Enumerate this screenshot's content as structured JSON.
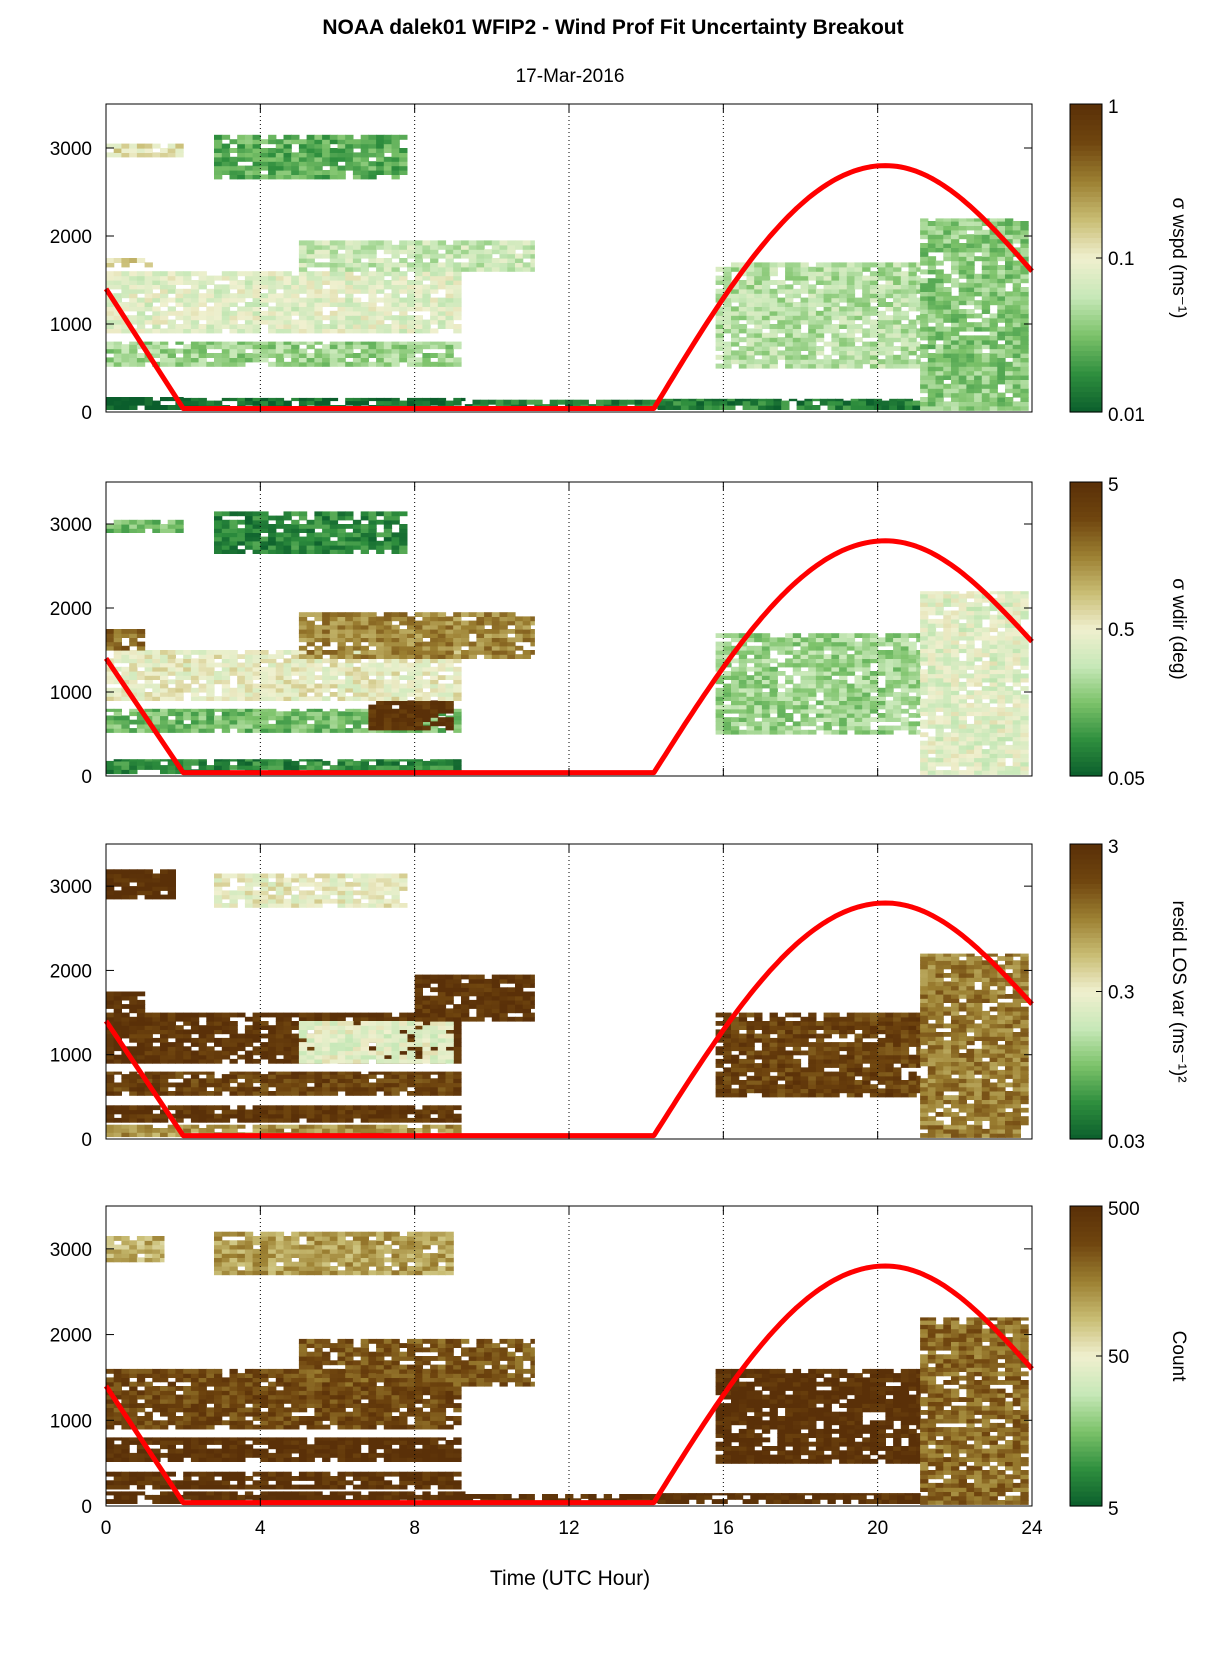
{
  "figure": {
    "title": "NOAA dalek01 WFIP2 - Wind Prof Fit Uncertainty Breakout",
    "subtitle": "17-Mar-2016",
    "xlabel": "Time (UTC Hour)"
  },
  "colors": {
    "colormap": [
      "#0b5e2c",
      "#2f8f3e",
      "#7cc26a",
      "#c7e8b8",
      "#f0f0cf",
      "#c9bd74",
      "#9c8032",
      "#70460f",
      "#5a3008"
    ],
    "sun_line": "#ff0000",
    "axis": "#000000",
    "grid": "#000000"
  },
  "chart_data": [
    {
      "type": "heatmap",
      "title": "",
      "xlabel": "",
      "ylabel": "",
      "xlim": [
        0,
        24
      ],
      "ylim": [
        0,
        3500
      ],
      "x_ticks": [
        0,
        4,
        8,
        12,
        16,
        20,
        24
      ],
      "y_ticks": [
        0,
        1000,
        2000,
        3000
      ],
      "y_tick_labels": [
        "0",
        "1000",
        "2000",
        "3000"
      ],
      "grid_vertical_dotted": true,
      "colorbar": {
        "label": "σ wspd (ms⁻¹)",
        "scale": "log",
        "ticks": [
          0.01,
          0.1,
          1
        ],
        "tick_labels": [
          "0.01",
          "0.1",
          "1"
        ]
      },
      "regions": [
        {
          "x": [
            0.0,
            2.0
          ],
          "y": [
            30,
            170
          ],
          "value": 0.01
        },
        {
          "x": [
            2.0,
            9.3
          ],
          "y": [
            30,
            160
          ],
          "value": 0.012
        },
        {
          "x": [
            9.3,
            14.3
          ],
          "y": [
            40,
            140
          ],
          "value": 0.015
        },
        {
          "x": [
            14.3,
            21.1
          ],
          "y": [
            30,
            150
          ],
          "value": 0.015
        },
        {
          "x": [
            0.0,
            9.2
          ],
          "y": [
            520,
            800
          ],
          "value": 0.04
        },
        {
          "x": [
            0.0,
            9.2
          ],
          "y": [
            900,
            1600
          ],
          "value": 0.08
        },
        {
          "x": [
            0.0,
            1.2
          ],
          "y": [
            1650,
            1750
          ],
          "value": 0.15
        },
        {
          "x": [
            5.0,
            11.1
          ],
          "y": [
            1600,
            1950
          ],
          "value": 0.06
        },
        {
          "x": [
            0.0,
            2.0
          ],
          "y": [
            2900,
            3050
          ],
          "value": 0.12
        },
        {
          "x": [
            2.8,
            7.8
          ],
          "y": [
            2650,
            3150
          ],
          "value": 0.025
        },
        {
          "x": [
            15.8,
            21.1
          ],
          "y": [
            500,
            1700
          ],
          "value": 0.05
        },
        {
          "x": [
            21.1,
            23.9
          ],
          "y": [
            20,
            2200
          ],
          "value": 0.035
        }
      ],
      "sun_elevation": {
        "x": [
          0,
          2,
          14.2,
          20.2,
          24
        ],
        "y": [
          1400,
          40,
          40,
          2800,
          1600
        ]
      }
    },
    {
      "type": "heatmap",
      "title": "",
      "xlabel": "",
      "ylabel": "",
      "xlim": [
        0,
        24
      ],
      "ylim": [
        0,
        3500
      ],
      "x_ticks": [
        0,
        4,
        8,
        12,
        16,
        20,
        24
      ],
      "y_ticks": [
        0,
        1000,
        2000,
        3000
      ],
      "y_tick_labels": [
        "0",
        "1000",
        "2000",
        "3000"
      ],
      "grid_vertical_dotted": true,
      "colorbar": {
        "label": "σ wdir (deg)",
        "scale": "log",
        "ticks": [
          0.05,
          0.5,
          5
        ],
        "tick_labels": [
          "0.05",
          "0.5",
          "5"
        ]
      },
      "regions": [
        {
          "x": [
            0.0,
            9.2
          ],
          "y": [
            30,
            200
          ],
          "value": 0.08
        },
        {
          "x": [
            0.0,
            9.2
          ],
          "y": [
            520,
            800
          ],
          "value": 0.15
        },
        {
          "x": [
            6.8,
            9.0
          ],
          "y": [
            550,
            900
          ],
          "value": 4.5
        },
        {
          "x": [
            0.0,
            9.2
          ],
          "y": [
            900,
            1500
          ],
          "value": 0.5
        },
        {
          "x": [
            0.0,
            1.0
          ],
          "y": [
            1500,
            1750
          ],
          "value": 2.0
        },
        {
          "x": [
            5.0,
            11.1
          ],
          "y": [
            1400,
            1950
          ],
          "value": 1.5
        },
        {
          "x": [
            0.0,
            2.0
          ],
          "y": [
            2900,
            3050
          ],
          "value": 0.15
        },
        {
          "x": [
            2.8,
            7.8
          ],
          "y": [
            2650,
            3150
          ],
          "value": 0.08
        },
        {
          "x": [
            15.8,
            21.1
          ],
          "y": [
            500,
            1700
          ],
          "value": 0.2
        },
        {
          "x": [
            21.1,
            23.9
          ],
          "y": [
            20,
            2200
          ],
          "value": 0.4
        }
      ],
      "sun_elevation": {
        "x": [
          0,
          2,
          14.2,
          20.2,
          24
        ],
        "y": [
          1400,
          40,
          40,
          2800,
          1600
        ]
      }
    },
    {
      "type": "heatmap",
      "title": "",
      "xlabel": "",
      "ylabel": "",
      "xlim": [
        0,
        24
      ],
      "ylim": [
        0,
        3500
      ],
      "x_ticks": [
        0,
        4,
        8,
        12,
        16,
        20,
        24
      ],
      "y_ticks": [
        0,
        1000,
        2000,
        3000
      ],
      "y_tick_labels": [
        "0",
        "1000",
        "2000",
        "3000"
      ],
      "grid_vertical_dotted": true,
      "colorbar": {
        "label": "resid LOS var (ms⁻¹)²",
        "scale": "log",
        "ticks": [
          0.03,
          0.3,
          3
        ],
        "tick_labels": [
          "0.03",
          "0.3",
          "3"
        ]
      },
      "regions": [
        {
          "x": [
            0.0,
            9.2
          ],
          "y": [
            30,
            170
          ],
          "value": 0.8
        },
        {
          "x": [
            0.0,
            9.2
          ],
          "y": [
            200,
            400
          ],
          "value": 2.5
        },
        {
          "x": [
            0.0,
            9.2
          ],
          "y": [
            520,
            800
          ],
          "value": 2.0
        },
        {
          "x": [
            0.0,
            9.2
          ],
          "y": [
            900,
            1500
          ],
          "value": 2.5
        },
        {
          "x": [
            5.0,
            9.0
          ],
          "y": [
            900,
            1400
          ],
          "value": 0.25
        },
        {
          "x": [
            0.0,
            1.0
          ],
          "y": [
            1500,
            1750
          ],
          "value": 3.0
        },
        {
          "x": [
            8.0,
            11.1
          ],
          "y": [
            1400,
            1950
          ],
          "value": 2.5
        },
        {
          "x": [
            0.0,
            1.8
          ],
          "y": [
            2850,
            3200
          ],
          "value": 3.0
        },
        {
          "x": [
            2.8,
            7.8
          ],
          "y": [
            2750,
            3150
          ],
          "value": 0.3
        },
        {
          "x": [
            15.8,
            21.1
          ],
          "y": [
            500,
            1500
          ],
          "value": 2.0
        },
        {
          "x": [
            21.1,
            23.9
          ],
          "y": [
            20,
            2200
          ],
          "value": 1.0
        }
      ],
      "sun_elevation": {
        "x": [
          0,
          2,
          14.2,
          20.2,
          24
        ],
        "y": [
          1400,
          40,
          40,
          2800,
          1600
        ]
      }
    },
    {
      "type": "heatmap",
      "title": "",
      "xlabel": "Time (UTC Hour)",
      "ylabel": "",
      "xlim": [
        0,
        24
      ],
      "ylim": [
        0,
        3500
      ],
      "x_ticks": [
        0,
        4,
        8,
        12,
        16,
        20,
        24
      ],
      "x_tick_labels": [
        "0",
        "4",
        "8",
        "12",
        "16",
        "20",
        "24"
      ],
      "y_ticks": [
        0,
        1000,
        2000,
        3000
      ],
      "y_tick_labels": [
        "0",
        "1000",
        "2000",
        "3000"
      ],
      "grid_vertical_dotted": true,
      "colorbar": {
        "label": "Count",
        "scale": "log",
        "ticks": [
          5,
          50,
          500
        ],
        "tick_labels": [
          "5",
          "50",
          "500"
        ]
      },
      "regions": [
        {
          "x": [
            0.0,
            9.3
          ],
          "y": [
            30,
            170
          ],
          "value": 500
        },
        {
          "x": [
            9.3,
            14.3
          ],
          "y": [
            40,
            140
          ],
          "value": 500
        },
        {
          "x": [
            14.3,
            21.1
          ],
          "y": [
            30,
            150
          ],
          "value": 500
        },
        {
          "x": [
            0.0,
            9.2
          ],
          "y": [
            200,
            400
          ],
          "value": 450
        },
        {
          "x": [
            0.0,
            9.2
          ],
          "y": [
            520,
            800
          ],
          "value": 500
        },
        {
          "x": [
            0.0,
            9.2
          ],
          "y": [
            900,
            1600
          ],
          "value": 300
        },
        {
          "x": [
            5.0,
            11.1
          ],
          "y": [
            1400,
            1950
          ],
          "value": 250
        },
        {
          "x": [
            0.0,
            1.5
          ],
          "y": [
            2850,
            3150
          ],
          "value": 100
        },
        {
          "x": [
            2.8,
            9.0
          ],
          "y": [
            2700,
            3200
          ],
          "value": 120
        },
        {
          "x": [
            15.8,
            21.1
          ],
          "y": [
            500,
            1600
          ],
          "value": 500
        },
        {
          "x": [
            21.1,
            23.9
          ],
          "y": [
            20,
            2200
          ],
          "value": 200
        }
      ],
      "sun_elevation": {
        "x": [
          0,
          2,
          14.2,
          20.2,
          24
        ],
        "y": [
          1400,
          40,
          40,
          2800,
          1600
        ]
      }
    }
  ]
}
